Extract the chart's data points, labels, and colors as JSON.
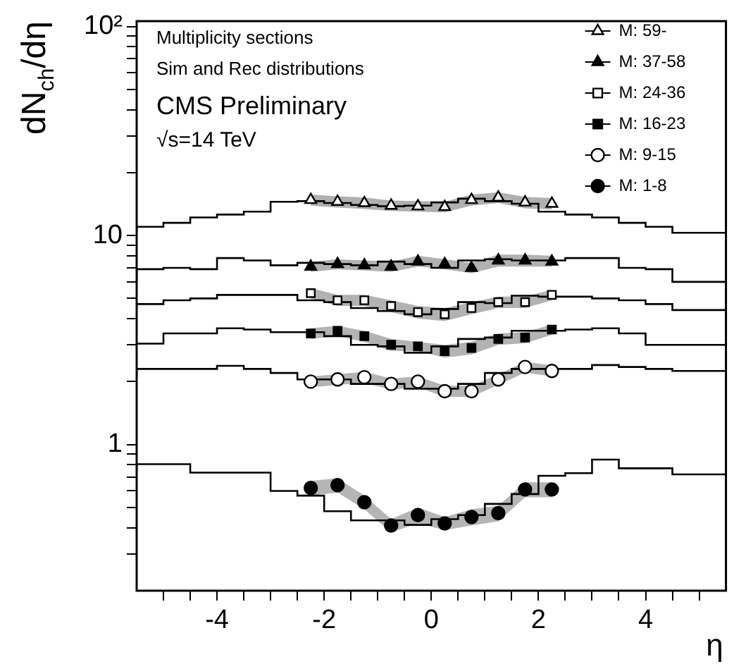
{
  "chart_data": {
    "type": "scatter",
    "xlabel": "η",
    "ylabel": "dN$_{ch}$/dη",
    "log": "y",
    "legend": "top right",
    "annotations": [
      "Multiplicity sections",
      "Sim and Rec distributions",
      "CMS Preliminary",
      "√s=14 TeV"
    ],
    "xlim": [
      -5.5,
      5.5
    ],
    "ylim": [
      0.2,
      106
    ],
    "xticks": [
      {
        "value": -5,
        "label": null
      },
      {
        "value": -4.5,
        "label": null
      },
      -4,
      {
        "value": -3.5,
        "label": null
      },
      {
        "value": -3,
        "label": null
      },
      {
        "value": -2.5,
        "label": null
      },
      -2,
      {
        "value": -1.5,
        "label": null
      },
      {
        "value": -1,
        "label": null
      },
      {
        "value": -0.5,
        "label": null
      },
      0,
      {
        "value": 0.5,
        "label": null
      },
      {
        "value": 1,
        "label": null
      },
      {
        "value": 1.5,
        "label": null
      },
      2,
      {
        "value": 2.5,
        "label": null
      },
      {
        "value": 3,
        "label": null
      },
      {
        "value": 3.5,
        "label": null
      },
      4,
      {
        "value": 4.5,
        "label": null
      },
      {
        "value": 5,
        "label": null
      }
    ],
    "yticks": [
      {
        "value": 0.3,
        "label": null
      },
      {
        "value": 0.4,
        "label": null
      },
      {
        "value": 0.5,
        "label": null
      },
      {
        "value": 0.6,
        "label": null
      },
      {
        "value": 0.7,
        "label": null
      },
      {
        "value": 0.8,
        "label": null
      },
      {
        "value": 0.9,
        "label": null
      },
      1,
      {
        "value": 2,
        "label": null
      },
      {
        "value": 3,
        "label": null
      },
      {
        "value": 4,
        "label": null
      },
      {
        "value": 5,
        "label": null
      },
      {
        "value": 6,
        "label": null
      },
      {
        "value": 7,
        "label": null
      },
      {
        "value": 8,
        "label": null
      },
      {
        "value": 9,
        "label": null
      },
      10,
      {
        "value": 20,
        "label": null
      },
      {
        "value": 30,
        "label": null
      },
      {
        "value": 40,
        "label": null
      },
      {
        "value": 50,
        "label": null
      },
      {
        "value": 60,
        "label": null
      },
      {
        "value": 70,
        "label": null
      },
      {
        "value": 80,
        "label": null
      },
      {
        "value": 90,
        "label": null
      },
      {
        "value": 100,
        "label": "10²"
      }
    ],
    "series": [
      {
        "type": "step",
        "color": "#000000",
        "x": [
          -5.5,
          -5,
          -4.5,
          -4,
          -3.5,
          -3,
          -2.5,
          -2,
          -1.5,
          -1,
          -0.5,
          0,
          0.5,
          1,
          1.5,
          2,
          2.5,
          3,
          3.5,
          4,
          4.5,
          5,
          5.5
        ],
        "values": [
          10.3,
          11.0,
          11.5,
          12.2,
          12.6,
          13.0,
          14.5,
          14.6,
          14.3,
          14.0,
          13.8,
          13.9,
          14.4,
          15.0,
          14.6,
          14.2,
          13.0,
          12.6,
          12.2,
          11.5,
          11.0,
          10.3,
          10.3
        ]
      },
      {
        "type": "step",
        "color": "#000000",
        "x": [
          -5.5,
          -5,
          -4.5,
          -4,
          -3.5,
          -3,
          -2.5,
          -2,
          -1.5,
          -1,
          -0.5,
          0,
          0.5,
          1,
          1.5,
          2,
          2.5,
          3,
          3.5,
          4,
          4.5,
          5,
          5.5
        ],
        "values": [
          6.0,
          6.9,
          7.0,
          6.9,
          7.8,
          7.6,
          7.2,
          7.4,
          7.3,
          7.2,
          7.5,
          7.3,
          7.0,
          7.6,
          7.7,
          7.6,
          7.6,
          7.8,
          7.8,
          7.0,
          6.9,
          6.0,
          6.0
        ]
      },
      {
        "type": "step",
        "color": "#000000",
        "x": [
          -5.5,
          -5,
          -4.5,
          -4,
          -3.5,
          -3,
          -2.5,
          -2,
          -1.5,
          -1,
          -0.5,
          0,
          0.5,
          1,
          1.5,
          2,
          2.5,
          3,
          3.5,
          4,
          4.5,
          5,
          5.5
        ],
        "values": [
          4.4,
          4.7,
          4.9,
          5.0,
          5.2,
          5.2,
          5.2,
          4.9,
          4.8,
          4.5,
          4.35,
          4.2,
          4.45,
          4.8,
          4.75,
          5.15,
          5.1,
          5.1,
          5.0,
          4.9,
          4.7,
          4.4,
          4.4
        ]
      },
      {
        "type": "step",
        "color": "#000000",
        "x": [
          -5.5,
          -5,
          -4.5,
          -4,
          -3.5,
          -3,
          -2.5,
          -2,
          -1.5,
          -1,
          -0.5,
          0,
          0.5,
          1,
          1.5,
          2,
          2.5,
          3,
          3.5,
          4,
          4.5,
          5,
          5.5
        ],
        "values": [
          3.04,
          3.04,
          3.4,
          3.4,
          3.6,
          3.55,
          3.45,
          3.45,
          3.3,
          3.0,
          2.95,
          2.75,
          2.95,
          3.2,
          3.25,
          3.5,
          3.5,
          3.55,
          3.6,
          3.4,
          3.0,
          3.0,
          3.0
        ]
      },
      {
        "type": "step",
        "color": "#000000",
        "x": [
          -5.5,
          -5,
          -4.5,
          -4,
          -3.5,
          -3,
          -2.5,
          -2,
          -1.5,
          -1,
          -0.5,
          0,
          0.5,
          1,
          1.5,
          2,
          2.5,
          3,
          3.5,
          4,
          4.5,
          5,
          5.5
        ],
        "values": [
          2.09,
          2.3,
          2.3,
          2.3,
          2.38,
          2.3,
          2.2,
          2.05,
          2.05,
          1.95,
          1.95,
          1.85,
          1.85,
          1.95,
          2.2,
          2.3,
          2.3,
          2.3,
          2.4,
          2.35,
          2.3,
          2.25,
          2.25
        ]
      },
      {
        "type": "step",
        "color": "#000000",
        "x": [
          -5.5,
          -5,
          -4.5,
          -4,
          -3.5,
          -3,
          -2.5,
          -2,
          -1.5,
          -1,
          -0.5,
          0,
          0.5,
          1,
          1.5,
          2,
          2.5,
          3,
          3.5,
          4,
          4.5,
          5,
          5.5
        ],
        "values": [
          0.746,
          0.806,
          0.806,
          0.734,
          0.734,
          0.734,
          0.6,
          0.57,
          0.48,
          0.434,
          0.434,
          0.413,
          0.44,
          0.46,
          0.52,
          0.58,
          0.709,
          0.73,
          0.848,
          0.77,
          0.77,
          0.72,
          0.72
        ]
      },
      {
        "name": "M: 59-",
        "marker": "triangle",
        "color": "#ffffff",
        "x": [
          -2.25,
          -1.75,
          -1.25,
          -0.75,
          -0.25,
          0.25,
          0.75,
          1.25,
          1.75,
          2.25
        ],
        "values": [
          14.8,
          14.5,
          14.3,
          13.9,
          13.8,
          13.7,
          14.8,
          15.2,
          14.4,
          14.2
        ],
        "lower": [
          13.9,
          13.6,
          13.4,
          13.1,
          13.0,
          12.9,
          13.9,
          14.3,
          13.5,
          13.3
        ],
        "upper": [
          15.7,
          15.4,
          15.2,
          14.7,
          14.6,
          14.5,
          15.7,
          16.1,
          15.3,
          15.1
        ]
      },
      {
        "name": "M: 37-58",
        "marker": "triangle",
        "color": "#000000",
        "x": [
          -2.25,
          -1.75,
          -1.25,
          -0.75,
          -0.25,
          0.25,
          0.75,
          1.25,
          1.75,
          2.25
        ],
        "values": [
          7.1,
          7.3,
          7.2,
          7.1,
          7.5,
          7.3,
          7.0,
          7.6,
          7.6,
          7.5
        ],
        "lower": [
          6.7,
          6.9,
          6.8,
          6.7,
          7.1,
          6.9,
          6.6,
          7.1,
          7.1,
          7.1
        ],
        "upper": [
          7.5,
          7.7,
          7.6,
          7.5,
          8.0,
          7.7,
          7.4,
          8.1,
          8.1,
          8.0
        ]
      },
      {
        "name": "M: 24-36",
        "marker": "square",
        "color": "#ffffff",
        "x": [
          -2.25,
          -1.75,
          -1.25,
          -0.75,
          -0.25,
          0.25,
          0.75,
          1.25,
          1.75,
          2.25
        ],
        "values": [
          5.3,
          4.9,
          4.9,
          4.6,
          4.3,
          4.2,
          4.5,
          4.8,
          4.8,
          5.2
        ],
        "lower": [
          5.0,
          4.6,
          4.6,
          4.3,
          4.0,
          3.9,
          4.2,
          4.5,
          4.5,
          4.9
        ],
        "upper": [
          5.6,
          5.2,
          5.2,
          4.9,
          4.6,
          4.5,
          4.8,
          5.1,
          5.1,
          5.5
        ]
      },
      {
        "name": "M: 16-23",
        "marker": "square",
        "color": "#000000",
        "x": [
          -2.25,
          -1.75,
          -1.25,
          -0.75,
          -0.25,
          0.25,
          0.75,
          1.25,
          1.75,
          2.25
        ],
        "values": [
          3.4,
          3.5,
          3.3,
          3.0,
          2.95,
          2.8,
          2.9,
          3.2,
          3.25,
          3.55
        ],
        "lower": [
          3.2,
          3.3,
          3.1,
          2.8,
          2.8,
          2.6,
          2.7,
          3.0,
          3.05,
          3.35
        ],
        "upper": [
          3.6,
          3.7,
          3.5,
          3.2,
          3.1,
          3.0,
          3.1,
          3.4,
          3.45,
          3.75
        ]
      },
      {
        "name": "M: 9-15",
        "marker": "circle",
        "color": "#ffffff",
        "x": [
          -2.25,
          -1.75,
          -1.25,
          -0.75,
          -0.25,
          0.25,
          0.75,
          1.25,
          1.75,
          2.25
        ],
        "values": [
          2.0,
          2.05,
          2.1,
          1.95,
          2.0,
          1.8,
          1.8,
          2.05,
          2.35,
          2.25
        ],
        "lower": [
          1.88,
          1.93,
          1.97,
          1.83,
          1.88,
          1.69,
          1.69,
          1.93,
          2.21,
          2.12
        ],
        "upper": [
          2.12,
          2.17,
          2.23,
          2.07,
          2.12,
          1.91,
          1.91,
          2.17,
          2.49,
          2.39
        ]
      },
      {
        "name": "M: 1-8",
        "marker": "circle",
        "color": "#000000",
        "x": [
          -2.25,
          -1.75,
          -1.25,
          -0.75,
          -0.25,
          0.25,
          0.75,
          1.25,
          1.75,
          2.25
        ],
        "values": [
          0.62,
          0.64,
          0.53,
          0.41,
          0.46,
          0.42,
          0.45,
          0.47,
          0.61,
          0.61
        ],
        "lower": [
          0.57,
          0.59,
          0.49,
          0.38,
          0.42,
          0.39,
          0.41,
          0.43,
          0.56,
          0.56
        ],
        "upper": [
          0.67,
          0.69,
          0.57,
          0.44,
          0.5,
          0.45,
          0.49,
          0.51,
          0.66,
          0.66
        ]
      }
    ]
  }
}
